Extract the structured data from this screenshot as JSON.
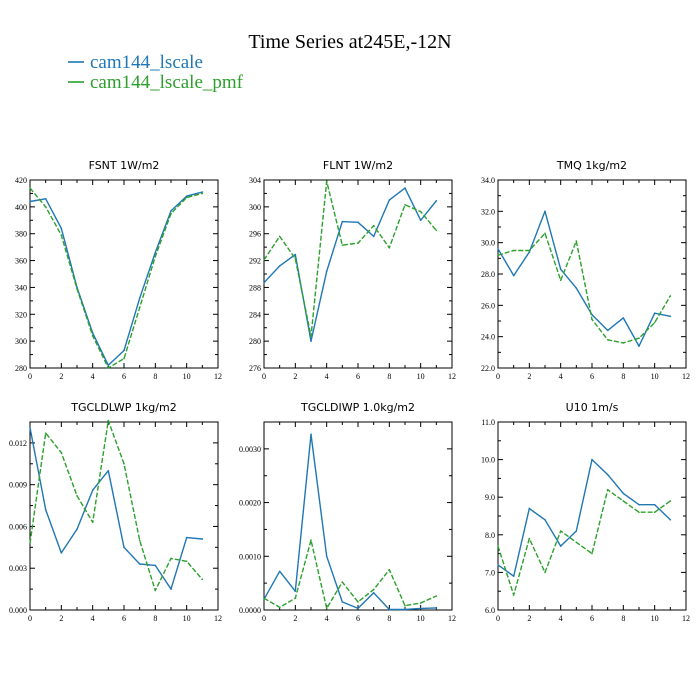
{
  "figure": {
    "title": "Time Series at245E,-12N",
    "legend": [
      {
        "name": "cam144_lscale",
        "color": "#1f77b4"
      },
      {
        "name": "cam144_lscale_pmf",
        "color": "#2ca02c"
      }
    ]
  },
  "chart_data": [
    {
      "type": "line",
      "title": "FSNT   1W/m2",
      "x": [
        0,
        1,
        2,
        3,
        4,
        5,
        6,
        7,
        8,
        9,
        10,
        11
      ],
      "xlim": [
        0,
        12
      ],
      "xticks": [
        "0",
        "2",
        "4",
        "6",
        "8",
        "10",
        "12"
      ],
      "ylim": [
        280,
        420
      ],
      "yticks": [
        "280",
        "300",
        "320",
        "340",
        "360",
        "380",
        "400",
        "420"
      ],
      "series": [
        {
          "name": "cam144_lscale",
          "values": [
            404,
            406,
            384,
            340,
            306,
            282,
            293,
            332,
            366,
            397,
            408,
            411
          ]
        },
        {
          "name": "cam144_lscale_pmf",
          "values": [
            414,
            400,
            379,
            339,
            304,
            280,
            287,
            325,
            363,
            395,
            407,
            410
          ]
        }
      ]
    },
    {
      "type": "line",
      "title": "FLNT   1W/m2",
      "x": [
        0,
        1,
        2,
        3,
        4,
        5,
        6,
        7,
        8,
        9,
        10,
        11
      ],
      "xlim": [
        0,
        12
      ],
      "xticks": [
        "0",
        "2",
        "4",
        "6",
        "8",
        "10",
        "12"
      ],
      "ylim": [
        276,
        304
      ],
      "yticks": [
        "276",
        "280",
        "284",
        "288",
        "292",
        "296",
        "300",
        "304"
      ],
      "series": [
        {
          "name": "cam144_lscale",
          "values": [
            288.7,
            291.2,
            292.9,
            280.0,
            290.4,
            297.8,
            297.7,
            295.6,
            301.0,
            302.8,
            298.0,
            300.9
          ]
        },
        {
          "name": "cam144_lscale_pmf",
          "values": [
            292.1,
            295.6,
            292.3,
            280.7,
            303.8,
            294.3,
            294.6,
            297.2,
            293.9,
            300.3,
            299.3,
            296.5
          ]
        }
      ]
    },
    {
      "type": "line",
      "title": "TMQ   1kg/m2",
      "x": [
        0,
        1,
        2,
        3,
        4,
        5,
        6,
        7,
        8,
        9,
        10,
        11
      ],
      "xlim": [
        0,
        12
      ],
      "xticks": [
        "0",
        "2",
        "4",
        "6",
        "8",
        "10",
        "12"
      ],
      "ylim": [
        22.0,
        34.0
      ],
      "yticks": [
        "22.0",
        "24.0",
        "26.0",
        "28.0",
        "30.0",
        "32.0",
        "34.0"
      ],
      "series": [
        {
          "name": "cam144_lscale",
          "values": [
            29.6,
            27.9,
            29.4,
            32.0,
            28.3,
            27.1,
            25.4,
            24.4,
            25.2,
            23.4,
            25.5,
            25.3
          ]
        },
        {
          "name": "cam144_lscale_pmf",
          "values": [
            29.2,
            29.5,
            29.5,
            30.6,
            27.6,
            30.1,
            25.1,
            23.8,
            23.6,
            23.9,
            24.9,
            26.6
          ]
        }
      ]
    },
    {
      "type": "line",
      "title": "TGCLDLWP   1kg/m2",
      "x": [
        0,
        1,
        2,
        3,
        4,
        5,
        6,
        7,
        8,
        9,
        10,
        11
      ],
      "xlim": [
        0,
        12
      ],
      "xticks": [
        "0",
        "2",
        "4",
        "6",
        "8",
        "10",
        "12"
      ],
      "ylim": [
        0.0,
        0.0135
      ],
      "yticks": [
        "0.000",
        "0.003",
        "0.006",
        "0.009",
        "0.012"
      ],
      "series": [
        {
          "name": "cam144_lscale",
          "values": [
            0.0131,
            0.0072,
            0.0041,
            0.0058,
            0.0086,
            0.01,
            0.0045,
            0.0033,
            0.0032,
            0.0015,
            0.0052,
            0.0051
          ]
        },
        {
          "name": "cam144_lscale_pmf",
          "values": [
            0.0048,
            0.0127,
            0.0113,
            0.0082,
            0.0063,
            0.0136,
            0.0105,
            0.005,
            0.0014,
            0.0037,
            0.0035,
            0.0022
          ]
        }
      ]
    },
    {
      "type": "line",
      "title": "TGCLDIWP   1.0kg/m2",
      "x": [
        0,
        1,
        2,
        3,
        4,
        5,
        6,
        7,
        8,
        9,
        10,
        11
      ],
      "xlim": [
        0,
        12
      ],
      "xticks": [
        "0",
        "2",
        "4",
        "6",
        "8",
        "10",
        "12"
      ],
      "ylim": [
        0.0,
        0.0035
      ],
      "yticks": [
        "0.0000",
        "0.0010",
        "0.0020",
        "0.0030"
      ],
      "series": [
        {
          "name": "cam144_lscale",
          "values": [
            0.0002,
            0.00072,
            0.00035,
            0.00327,
            0.001,
            0.00015,
            3e-05,
            0.00032,
            1e-05,
            1e-05,
            3e-05,
            4e-05
          ]
        },
        {
          "name": "cam144_lscale_pmf",
          "values": [
            0.00022,
            5e-05,
            0.00022,
            0.0013,
            3e-05,
            0.00052,
            0.00015,
            0.00038,
            0.00075,
            8e-05,
            0.00013,
            0.00026
          ]
        }
      ]
    },
    {
      "type": "line",
      "title": "U10   1m/s",
      "x": [
        0,
        1,
        2,
        3,
        4,
        5,
        6,
        7,
        8,
        9,
        10,
        11
      ],
      "xlim": [
        0,
        12
      ],
      "xticks": [
        "0",
        "2",
        "4",
        "6",
        "8",
        "10",
        "12"
      ],
      "ylim": [
        6.0,
        11.0
      ],
      "yticks": [
        "6.0",
        "7.0",
        "8.0",
        "9.0",
        "10.0",
        "11.0"
      ],
      "series": [
        {
          "name": "cam144_lscale",
          "values": [
            7.2,
            6.9,
            8.7,
            8.4,
            7.7,
            8.1,
            10.0,
            9.6,
            9.1,
            8.8,
            8.8,
            8.4
          ]
        },
        {
          "name": "cam144_lscale_pmf",
          "values": [
            7.7,
            6.4,
            7.9,
            7.0,
            8.1,
            7.8,
            7.5,
            9.2,
            8.9,
            8.6,
            8.6,
            8.9
          ]
        }
      ]
    }
  ]
}
